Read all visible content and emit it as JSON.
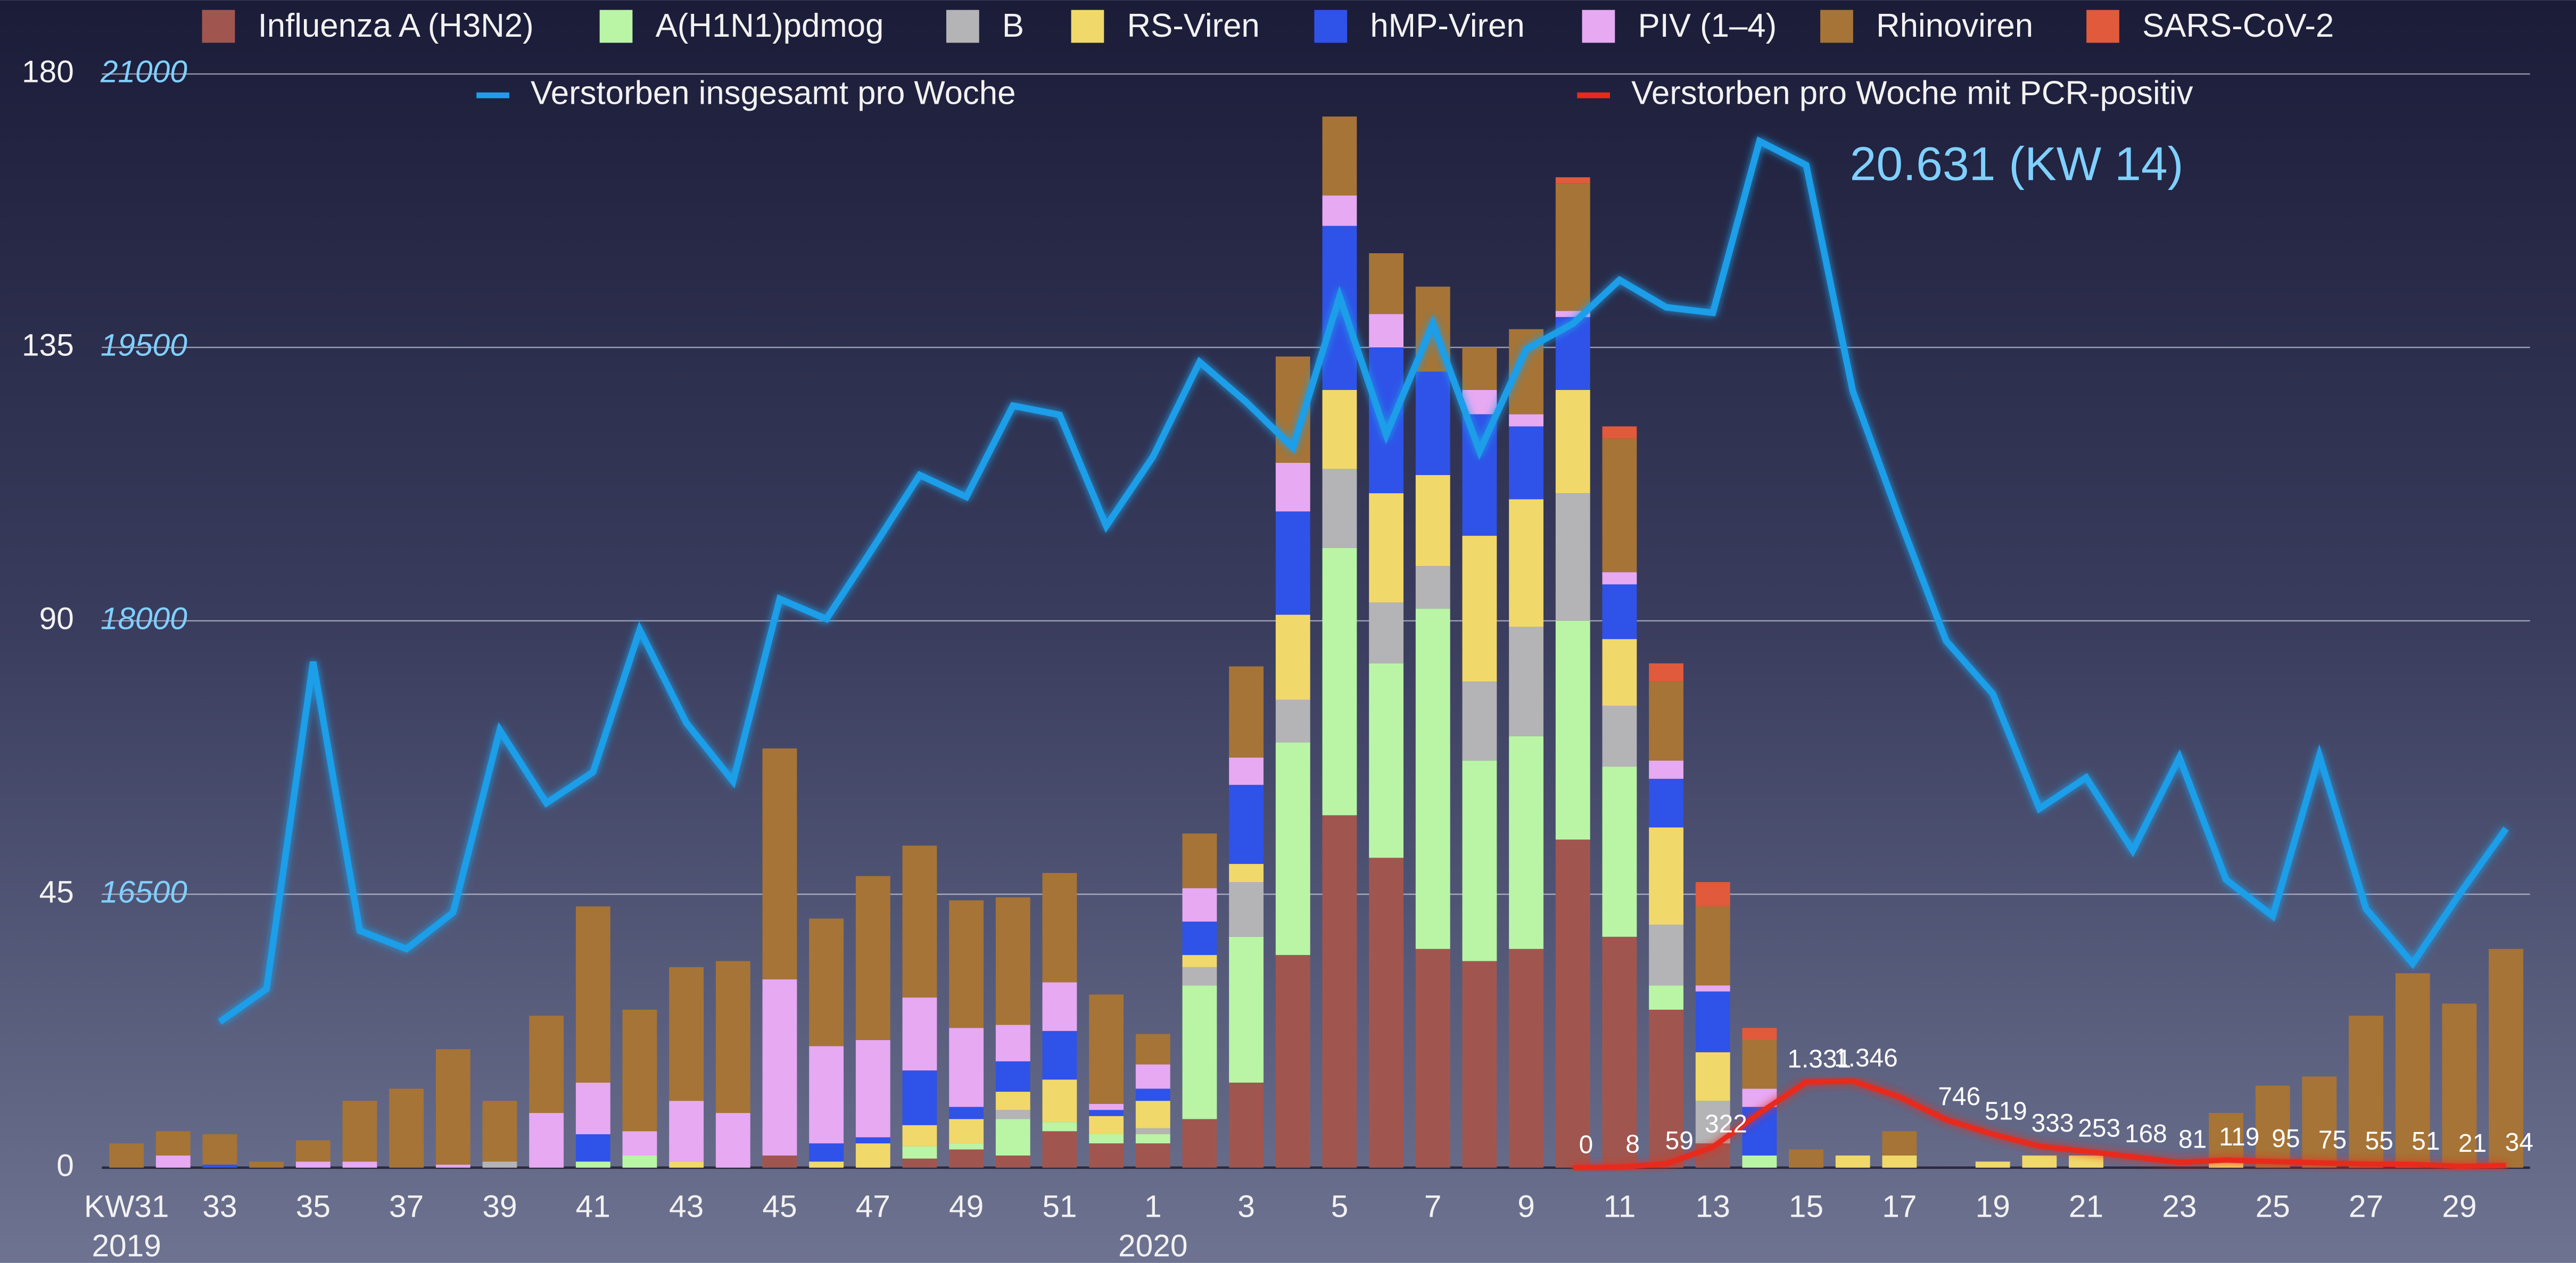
{
  "chart_data": {
    "type": "bar",
    "stacked": true,
    "categories": [
      "KW31",
      null,
      "33",
      null,
      "35",
      null,
      "37",
      null,
      "39",
      null,
      "41",
      null,
      "43",
      null,
      "45",
      null,
      "47",
      null,
      "49",
      null,
      "51",
      null,
      "1",
      null,
      "3",
      null,
      "5",
      null,
      "7",
      null,
      "9",
      null,
      "11",
      null,
      "13",
      null,
      "15",
      null,
      "17",
      null,
      "19",
      null,
      "21",
      null,
      "23",
      null,
      "25",
      null,
      "27",
      null,
      "29",
      null
    ],
    "year_labels": [
      "2019",
      "2020"
    ],
    "series": [
      {
        "name": "Influenza A (H3N2)",
        "color": "#a0564f",
        "values": [
          0,
          0,
          0,
          0,
          0,
          0,
          0,
          0,
          0,
          0,
          0,
          0,
          0,
          0,
          2,
          0,
          0,
          1.5,
          3,
          2,
          6,
          4,
          4,
          8,
          14,
          35,
          58,
          51,
          36,
          34,
          36,
          54,
          38,
          26,
          4,
          0,
          0,
          0,
          0,
          0,
          0,
          0,
          0,
          0,
          0,
          0,
          0,
          0,
          0,
          0,
          0,
          0
        ]
      },
      {
        "name": "A(H1N1)pdmog",
        "color": "#b9f5a5",
        "values": [
          0,
          0,
          0,
          0,
          0,
          0,
          0,
          0,
          0,
          0,
          1,
          2,
          0,
          0,
          0,
          0,
          0,
          2,
          1,
          6,
          1.5,
          1.5,
          1.5,
          22,
          24,
          35,
          44,
          32,
          56,
          33,
          35,
          36,
          28,
          4,
          0,
          2,
          0,
          0,
          0,
          0,
          0,
          0,
          0,
          0,
          0,
          0,
          0,
          0,
          0,
          0,
          0,
          0
        ]
      },
      {
        "name": "B",
        "color": "#b4b4b6",
        "values": [
          0,
          0,
          0,
          0,
          0,
          0,
          0,
          0,
          1,
          0,
          0,
          0,
          0,
          0,
          0,
          0,
          0,
          0,
          0,
          1.5,
          0,
          0,
          1,
          3,
          9,
          7,
          13,
          10,
          7,
          13,
          18,
          21,
          10,
          10,
          7,
          0,
          0,
          0,
          0,
          0,
          0,
          0,
          0,
          0,
          0,
          0,
          0,
          0,
          0,
          0,
          0,
          0
        ]
      },
      {
        "name": "RS-Viren",
        "color": "#f1d86a",
        "values": [
          0,
          0,
          0,
          0,
          0,
          0,
          0,
          0,
          0,
          0,
          0,
          0,
          1,
          0,
          0,
          1,
          4,
          3.5,
          4,
          3,
          7,
          3,
          4.5,
          2,
          3,
          14,
          13,
          18,
          15,
          24,
          21,
          17,
          11,
          16,
          8,
          0,
          0,
          2,
          2,
          0,
          1,
          2,
          2,
          0,
          0,
          1.5,
          0,
          0,
          0,
          0,
          0,
          0
        ]
      },
      {
        "name": "hMP-Viren",
        "color": "#2f52e8",
        "values": [
          0,
          0,
          0.5,
          0,
          0,
          0,
          0,
          0,
          0,
          0,
          4.5,
          0,
          0,
          0,
          0,
          3,
          1,
          9,
          2,
          5,
          8,
          1,
          2,
          5.5,
          13,
          17,
          27,
          24,
          17,
          20,
          12,
          12,
          9,
          8,
          10,
          8,
          0,
          0,
          0,
          0,
          0,
          0,
          0,
          0,
          0,
          0,
          0,
          0,
          0,
          0,
          0,
          0
        ]
      },
      {
        "name": "PIV (1–4)",
        "color": "#e6a9f2",
        "values": [
          0,
          2,
          0,
          0,
          1,
          1,
          0,
          0.5,
          0,
          9,
          8.5,
          4,
          10,
          9,
          29,
          16,
          16,
          12,
          13,
          6,
          8,
          1,
          4,
          5.5,
          4.5,
          8,
          5,
          5.5,
          0,
          4,
          2,
          1,
          2,
          3,
          1,
          3,
          0,
          0,
          0,
          0,
          0,
          0,
          0,
          0,
          0,
          0,
          0,
          0,
          0,
          0,
          0,
          0
        ]
      },
      {
        "name": "Rhinoviren",
        "color": "#a67436",
        "values": [
          4,
          4,
          5,
          1,
          3.5,
          10,
          13,
          19,
          10,
          16,
          29,
          20,
          22,
          25,
          38,
          21,
          27,
          25,
          21,
          21,
          18,
          18,
          5,
          9,
          15,
          17.5,
          13,
          10,
          14,
          7,
          14,
          21,
          22,
          13,
          13,
          8,
          3,
          0,
          4,
          0,
          0,
          0,
          0,
          0,
          0,
          7.5,
          13.5,
          15,
          25,
          32,
          27,
          36
        ]
      },
      {
        "name": "SARS-CoV-2",
        "color": "#e05a3b",
        "values": [
          0,
          0,
          0,
          0,
          0,
          0,
          0,
          0,
          0,
          0,
          0,
          0,
          0,
          0,
          0,
          0,
          0,
          0,
          0,
          0,
          0,
          0,
          0,
          0,
          0,
          0,
          0,
          0,
          0,
          0,
          0,
          1,
          2,
          3,
          4,
          2,
          0,
          0,
          0,
          0,
          0,
          0,
          0,
          0,
          0,
          0,
          0,
          0,
          0,
          0,
          0,
          0
        ]
      },
      {
        "name": "Verstorben insgesamt pro Woche",
        "type": "line",
        "axis": "y2",
        "color": "#1e9ee9",
        "values": [
          null,
          null,
          15800,
          15980,
          17775,
          16300,
          16200,
          16400,
          17400,
          17000,
          17170,
          17950,
          17440,
          17120,
          18120,
          18010,
          18400,
          18800,
          18680,
          19180,
          19130,
          18520,
          18900,
          19420,
          19200,
          18950,
          19780,
          19020,
          19630,
          18930,
          19490,
          19630,
          19870,
          19720,
          19690,
          20631,
          20500,
          19260,
          18560,
          17890,
          17600,
          16970,
          17140,
          16740,
          17250,
          16580,
          16380,
          17260,
          16420,
          16120,
          16500,
          16860
        ]
      },
      {
        "name": "Verstorben pro Woche mit PCR-positiv",
        "type": "line",
        "axis": "y3",
        "color": "#e8291c",
        "values": [
          null,
          null,
          null,
          null,
          null,
          null,
          null,
          null,
          null,
          null,
          null,
          null,
          null,
          null,
          null,
          null,
          null,
          null,
          null,
          null,
          null,
          null,
          null,
          null,
          null,
          null,
          null,
          null,
          null,
          null,
          null,
          0,
          8,
          59,
          322,
          850,
          1331,
          1346,
          1100,
          746,
          519,
          333,
          253,
          168,
          81,
          119,
          95,
          75,
          55,
          51,
          21,
          34
        ],
        "value_labels": [
          null,
          null,
          null,
          null,
          null,
          null,
          null,
          null,
          null,
          null,
          null,
          null,
          null,
          null,
          null,
          null,
          null,
          null,
          null,
          null,
          null,
          null,
          null,
          null,
          null,
          null,
          null,
          null,
          null,
          null,
          null,
          "0",
          "8",
          "59",
          "322",
          null,
          "1.331",
          "1.346",
          null,
          "746",
          "519",
          "333",
          "253",
          "168",
          "81",
          "119",
          "95",
          "75",
          "55",
          "51",
          "21",
          "34"
        ]
      }
    ],
    "ylim": [
      0,
      180
    ],
    "yticks": [
      0,
      45,
      90,
      135,
      180
    ],
    "y2lim": [
      15000,
      21000
    ],
    "y2ticks": [
      16500,
      18000,
      19500,
      21000
    ],
    "y3lim": [
      0,
      17000
    ],
    "grid": true,
    "legend": "top",
    "annotations": [
      "20.631 (KW 14)"
    ]
  }
}
